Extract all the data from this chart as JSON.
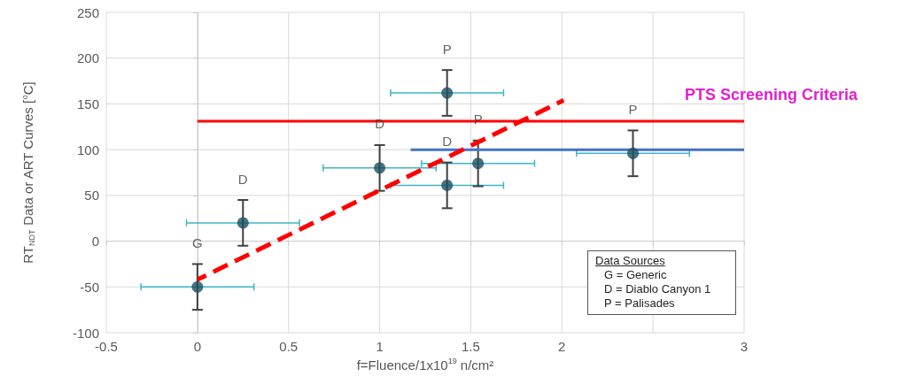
{
  "chart_data": {
    "type": "scatter",
    "xlabel": "f=Fluence/1x10$^{19}$ n/cm²",
    "ylabel": "RT$_{NDT}$ Data or ART Curves [$^{o}$C]",
    "legend_title": "Data Sources",
    "annotations": [
      "G = Generic",
      "D = Diablo Canyon 1",
      "P = Palisades"
    ],
    "xlim": [
      -0.5,
      3
    ],
    "xticks": [
      -0.5,
      0,
      0.5,
      1,
      1.5,
      2,
      {
        "value": 2.5,
        "label": null
      },
      3
    ],
    "ylim": [
      -100,
      250
    ],
    "yticks": [
      -100,
      -50,
      0,
      50,
      100,
      150,
      200,
      250
    ],
    "grid": true,
    "legend": false,
    "series": [
      {
        "type": "scatter",
        "color": "#1b4f5f",
        "marker": "circle",
        "x": [
          0,
          0.25,
          1.0,
          1.37,
          1.37,
          1.54,
          2.39
        ],
        "values": [
          -50,
          20,
          80,
          162,
          61,
          85,
          96
        ],
        "errors": [
          25,
          25,
          25,
          25,
          25,
          25,
          25
        ],
        "xerrors": [
          0.31,
          0.31,
          0.31,
          0.31,
          0.31,
          0.31,
          0.31
        ],
        "value_labels": [
          "G",
          "D",
          "D",
          "P",
          "D",
          "P",
          "P"
        ]
      },
      {
        "type": "line",
        "name": "PTS Screening Criteria",
        "color": "#ff0000",
        "line_style": "solid",
        "marker": "none",
        "x": [
          0,
          3
        ],
        "values": [
          131,
          131
        ]
      },
      {
        "type": "line",
        "color": "#4472c4",
        "line_style": "solid",
        "marker": "none",
        "x": [
          1.17,
          3
        ],
        "values": [
          100,
          100
        ]
      },
      {
        "type": "line",
        "color": "#ff0000",
        "line_style": "dashed",
        "marker": "none",
        "x": [
          0,
          2.01
        ],
        "values": [
          -42,
          154
        ]
      }
    ]
  }
}
